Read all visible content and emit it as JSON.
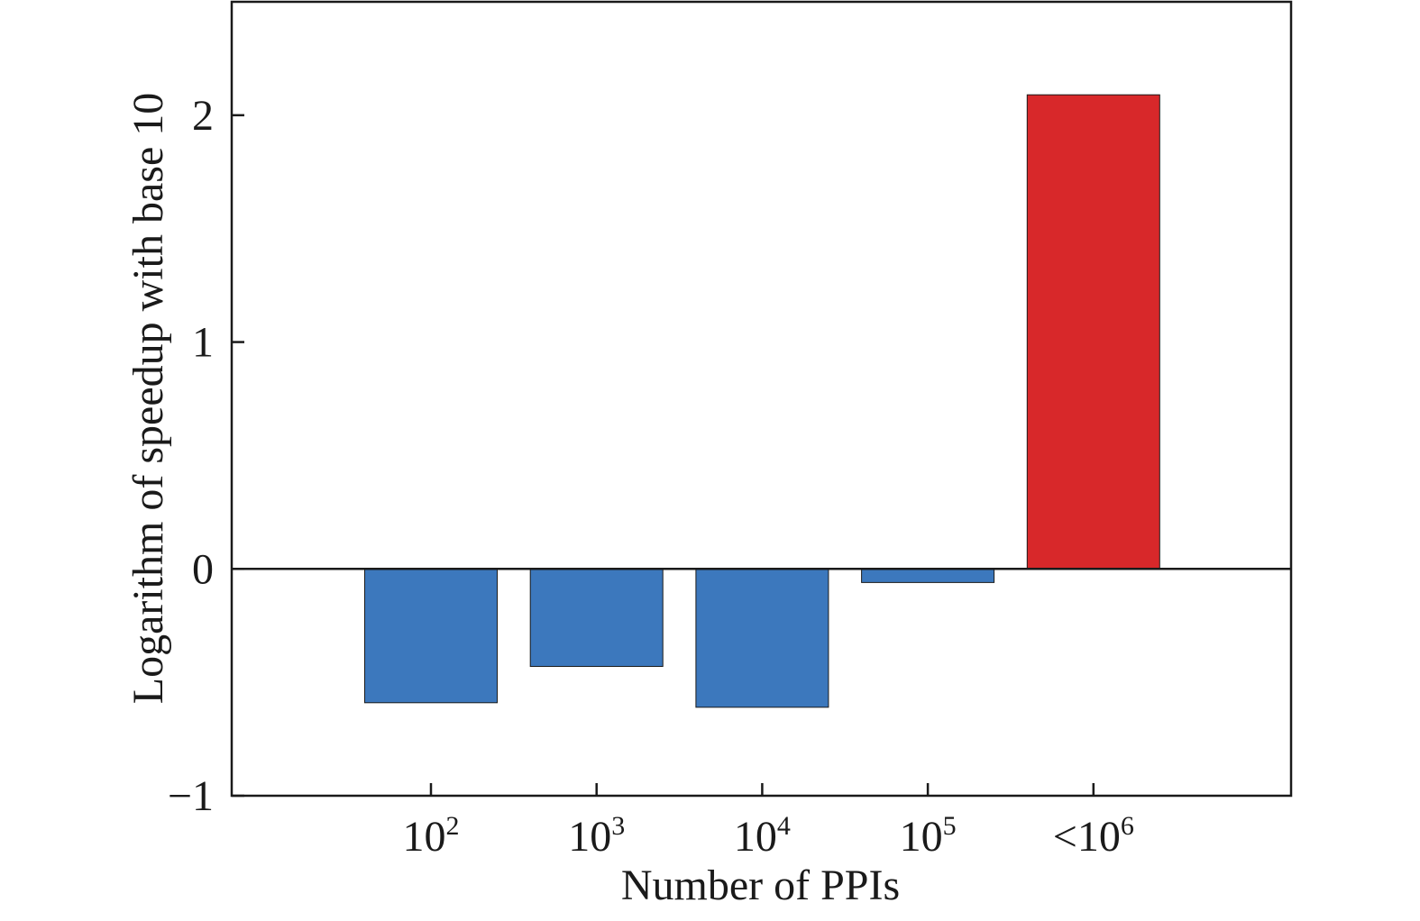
{
  "chart_data": {
    "type": "bar",
    "title": "",
    "xlabel": "Number of PPIs",
    "ylabel": "Logarithm of speedup with base 10",
    "categories": [
      {
        "base": "10",
        "sup": "2"
      },
      {
        "base": "10",
        "sup": "3"
      },
      {
        "base": "10",
        "sup": "4"
      },
      {
        "base": "10",
        "sup": "5"
      },
      {
        "base": "<10",
        "sup": "6"
      }
    ],
    "values": [
      -0.59,
      -0.43,
      -0.61,
      -0.06,
      2.09
    ],
    "bar_colors": [
      "#3c78bd",
      "#3c78bd",
      "#3c78bd",
      "#3c78bd",
      "#d8282a"
    ],
    "ylim": [
      -1,
      2.5
    ],
    "yticks": [
      {
        "value": -1,
        "label": "−1"
      },
      {
        "value": 0,
        "label": "0"
      },
      {
        "value": 1,
        "label": "1"
      },
      {
        "value": 2,
        "label": "2"
      }
    ],
    "zero_line": true,
    "grid": false,
    "legend": "none"
  },
  "colors": {
    "axis": "#1a1a1a",
    "bar_edge": "#1a1a1a",
    "background": "#ffffff"
  }
}
